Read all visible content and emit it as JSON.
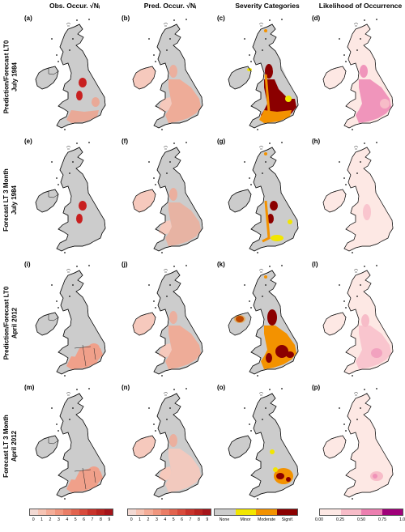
{
  "columns": [
    {
      "header": "Obs. Occur. √Nᵢ"
    },
    {
      "header": "Pred. Occur. √Nᵢ"
    },
    {
      "header": "Severity Categories"
    },
    {
      "header": "Likelihood of Occurrence"
    }
  ],
  "rows": [
    {
      "line1": "Prediction/Forecast LT0",
      "line2": "July 1984",
      "panels": [
        "(a)",
        "(b)",
        "(c)",
        "(d)"
      ]
    },
    {
      "line1": "Forecast LT 3 Month",
      "line2": "July 1984",
      "panels": [
        "(e)",
        "(f)",
        "(g)",
        "(h)"
      ]
    },
    {
      "line1": "Prediction/Forecast LT0",
      "line2": "April 2012",
      "panels": [
        "(i)",
        "(j)",
        "(k)",
        "(l)"
      ]
    },
    {
      "line1": "Forecast LT 3 Month",
      "line2": "April 2012",
      "panels": [
        "(m)",
        "(n)",
        "(o)",
        "(p)"
      ]
    }
  ],
  "legends": [
    {
      "colors": [
        "#f2d9d3",
        "#f6c4b4",
        "#f4ad98",
        "#f0967e",
        "#ea7d66",
        "#e2644f",
        "#d84b3c",
        "#c8332b",
        "#b8231f",
        "#a5141a"
      ],
      "ticks": [
        "0",
        "1",
        "2",
        "3",
        "4",
        "5",
        "6",
        "7",
        "8",
        "9"
      ]
    },
    {
      "colors": [
        "#f2d9d3",
        "#f6c4b4",
        "#f4ad98",
        "#f0967e",
        "#ea7d66",
        "#e2644f",
        "#d84b3c",
        "#c8332b",
        "#b8231f",
        "#a5141a"
      ],
      "ticks": [
        "0",
        "1",
        "2",
        "3",
        "4",
        "5",
        "6",
        "7",
        "8",
        "9"
      ]
    },
    {
      "colors": [
        "#cccccc",
        "#f2e600",
        "#f39200",
        "#8b0000"
      ],
      "ticks": [
        "None",
        "Minor",
        "Moderate",
        "Signif."
      ]
    },
    {
      "colors": [
        "#fde8e4",
        "#f7bcc8",
        "#ec7fb0",
        "#a0007a"
      ],
      "ticks": [
        "0.00",
        "0.25",
        "0.50",
        "0.75",
        "1.00"
      ]
    }
  ],
  "colors": {
    "land_none": "#cccccc",
    "pred_light": "#f6c9bc",
    "pred_mid": "#f2a892",
    "obs_mid": "#f0a08a",
    "obs_dark": "#c82020",
    "minor": "#f2e600",
    "moderate": "#f39200",
    "signif": "#8b0000",
    "like_base": "#fde8e4",
    "like_mid": "#f7bcc8",
    "like_high": "#ec7fb0"
  }
}
